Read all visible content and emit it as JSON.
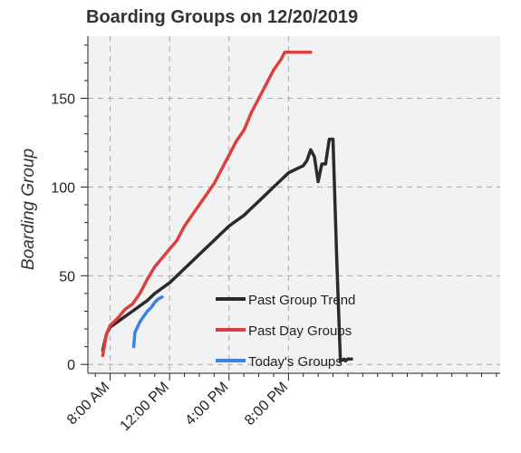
{
  "chart_data": {
    "type": "line",
    "title": "Boarding Groups on 12/20/2019",
    "xlabel": "",
    "ylabel": "Boarding Group",
    "xlim": [
      "6:30 AM",
      "10:15 AM (next day)"
    ],
    "ylim": [
      -5,
      185
    ],
    "x_ticks": [
      "8:00 AM",
      "12:00 PM",
      "4:00 PM",
      "8:00 PM"
    ],
    "y_ticks": [
      0,
      50,
      100,
      150
    ],
    "grid": true,
    "legend_position": "lower-center",
    "series": [
      {
        "name": "Past Group Trend",
        "color": "#2b2b2b",
        "x": [
          "7:30 AM",
          "7:45 AM",
          "8:00 AM",
          "8:30 AM",
          "9:00 AM",
          "9:30 AM",
          "10:00 AM",
          "10:30 AM",
          "11:00 AM",
          "11:30 AM",
          "12:00 PM",
          "12:30 PM",
          "1:00 PM",
          "1:30 PM",
          "2:00 PM",
          "2:30 PM",
          "3:00 PM",
          "3:30 PM",
          "4:00 PM",
          "4:30 PM",
          "5:00 PM",
          "5:30 PM",
          "6:00 PM",
          "6:30 PM",
          "7:00 PM",
          "7:30 PM",
          "8:00 PM",
          "8:30 PM",
          "9:00 PM",
          "9:15 PM",
          "9:30 PM",
          "9:45 PM",
          "10:00 PM",
          "10:15 PM",
          "10:30 PM",
          "10:45 PM",
          "11:00 PM",
          "11:15 PM",
          "11:30 PM",
          "11:45 PM",
          "11:50 PM",
          "12:00 AM",
          "12:15 AM"
        ],
        "y": [
          8,
          17,
          21,
          24,
          27,
          30,
          33,
          36,
          40,
          43,
          46,
          50,
          54,
          58,
          62,
          66,
          70,
          74,
          78,
          81,
          84,
          88,
          92,
          96,
          100,
          104,
          108,
          110,
          112,
          115,
          121,
          117,
          103,
          113,
          113,
          127,
          127,
          60,
          2,
          3,
          2,
          3,
          3
        ]
      },
      {
        "name": "Past Day Groups",
        "color": "#d94040",
        "x": [
          "7:30 AM",
          "7:45 AM",
          "8:00 AM",
          "8:30 AM",
          "9:00 AM",
          "9:30 AM",
          "10:00 AM",
          "10:30 AM",
          "11:00 AM",
          "11:30 AM",
          "12:00 PM",
          "12:30 PM",
          "1:00 PM",
          "1:30 PM",
          "2:00 PM",
          "2:30 PM",
          "3:00 PM",
          "3:30 PM",
          "4:00 PM",
          "4:30 PM",
          "5:00 PM",
          "5:30 PM",
          "6:00 PM",
          "6:30 PM",
          "7:00 PM",
          "7:30 PM",
          "7:45 PM",
          "8:00 PM",
          "8:30 PM",
          "9:00 PM",
          "9:30 PM"
        ],
        "y": [
          5,
          17,
          22,
          26,
          31,
          34,
          40,
          48,
          55,
          60,
          65,
          70,
          78,
          84,
          90,
          96,
          102,
          110,
          118,
          126,
          132,
          142,
          150,
          158,
          166,
          172,
          176,
          176,
          176,
          176,
          176
        ]
      },
      {
        "name": "Today's Groups",
        "color": "#3b82e6",
        "x": [
          "9:35 AM",
          "9:40 AM",
          "9:50 AM",
          "10:00 AM",
          "10:15 AM",
          "10:30 AM",
          "10:45 AM",
          "11:00 AM",
          "11:15 AM",
          "11:30 AM"
        ],
        "y": [
          10,
          18,
          21,
          24,
          27,
          30,
          32,
          35,
          37,
          38
        ]
      }
    ]
  }
}
